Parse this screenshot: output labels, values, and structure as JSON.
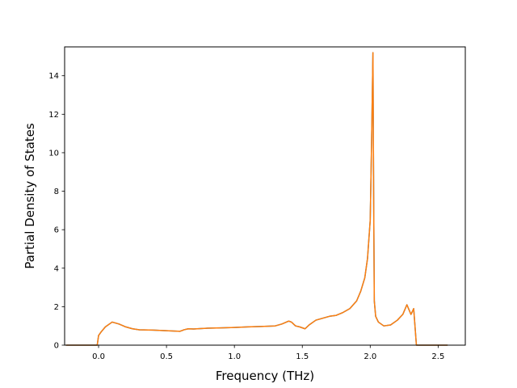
{
  "chart_data": {
    "type": "line",
    "title": "",
    "xlabel": "Frequency (THz)",
    "ylabel": "Partial Density of States",
    "xlim": [
      -0.25,
      2.7
    ],
    "ylim": [
      0,
      15.5
    ],
    "xticks": [
      0.0,
      0.5,
      1.0,
      1.5,
      2.0,
      2.5
    ],
    "xtick_labels": [
      "0.0",
      "0.5",
      "1.0",
      "1.5",
      "2.0",
      "2.5"
    ],
    "yticks": [
      0,
      2,
      4,
      6,
      8,
      10,
      12,
      14
    ],
    "ytick_labels": [
      "0",
      "2",
      "4",
      "6",
      "8",
      "10",
      "12",
      "14"
    ],
    "grid": false,
    "legend": "none",
    "series": [
      {
        "color": "#1f77b4",
        "x": [
          -0.24,
          -0.01,
          0.0,
          0.02,
          0.05,
          0.1,
          0.15,
          0.2,
          0.25,
          0.3,
          0.4,
          0.5,
          0.6,
          0.63,
          0.66,
          0.7,
          0.75,
          0.8,
          0.9,
          1.0,
          1.1,
          1.2,
          1.3,
          1.35,
          1.4,
          1.42,
          1.45,
          1.48,
          1.52,
          1.55,
          1.6,
          1.65,
          1.7,
          1.75,
          1.8,
          1.85,
          1.9,
          1.93,
          1.96,
          1.98,
          2.0,
          2.01,
          2.02,
          2.025,
          2.03,
          2.04,
          2.06,
          2.1,
          2.15,
          2.2,
          2.24,
          2.27,
          2.3,
          2.32,
          2.34,
          2.36,
          2.4,
          2.57
        ],
        "y": [
          0,
          0,
          0.5,
          0.7,
          0.95,
          1.2,
          1.1,
          0.95,
          0.85,
          0.8,
          0.78,
          0.75,
          0.72,
          0.8,
          0.85,
          0.84,
          0.86,
          0.88,
          0.9,
          0.92,
          0.95,
          0.97,
          1.0,
          1.1,
          1.25,
          1.2,
          1.0,
          0.95,
          0.85,
          1.05,
          1.3,
          1.4,
          1.5,
          1.55,
          1.7,
          1.9,
          2.3,
          2.8,
          3.5,
          4.5,
          6.5,
          10.5,
          15.2,
          8.0,
          2.3,
          1.5,
          1.2,
          1.0,
          1.05,
          1.3,
          1.6,
          2.1,
          1.6,
          1.9,
          0,
          0,
          0,
          0
        ]
      },
      {
        "color": "#ff7f0e",
        "x": [
          -0.24,
          -0.01,
          0.0,
          0.02,
          0.05,
          0.1,
          0.15,
          0.2,
          0.25,
          0.3,
          0.4,
          0.5,
          0.6,
          0.63,
          0.66,
          0.7,
          0.75,
          0.8,
          0.9,
          1.0,
          1.1,
          1.2,
          1.3,
          1.35,
          1.4,
          1.42,
          1.45,
          1.48,
          1.52,
          1.55,
          1.6,
          1.65,
          1.7,
          1.75,
          1.8,
          1.85,
          1.9,
          1.93,
          1.96,
          1.98,
          2.0,
          2.01,
          2.02,
          2.025,
          2.03,
          2.04,
          2.06,
          2.1,
          2.15,
          2.2,
          2.24,
          2.27,
          2.3,
          2.32,
          2.34,
          2.36,
          2.4,
          2.57
        ],
        "y": [
          0,
          0,
          0.5,
          0.7,
          0.95,
          1.2,
          1.1,
          0.95,
          0.85,
          0.8,
          0.78,
          0.75,
          0.72,
          0.8,
          0.85,
          0.84,
          0.86,
          0.88,
          0.9,
          0.92,
          0.95,
          0.97,
          1.0,
          1.1,
          1.25,
          1.2,
          1.0,
          0.95,
          0.85,
          1.05,
          1.3,
          1.4,
          1.5,
          1.55,
          1.7,
          1.9,
          2.3,
          2.8,
          3.5,
          4.5,
          6.5,
          10.5,
          15.2,
          8.0,
          2.3,
          1.5,
          1.2,
          1.0,
          1.05,
          1.3,
          1.6,
          2.1,
          1.6,
          1.9,
          0,
          0,
          0,
          0
        ]
      }
    ]
  }
}
